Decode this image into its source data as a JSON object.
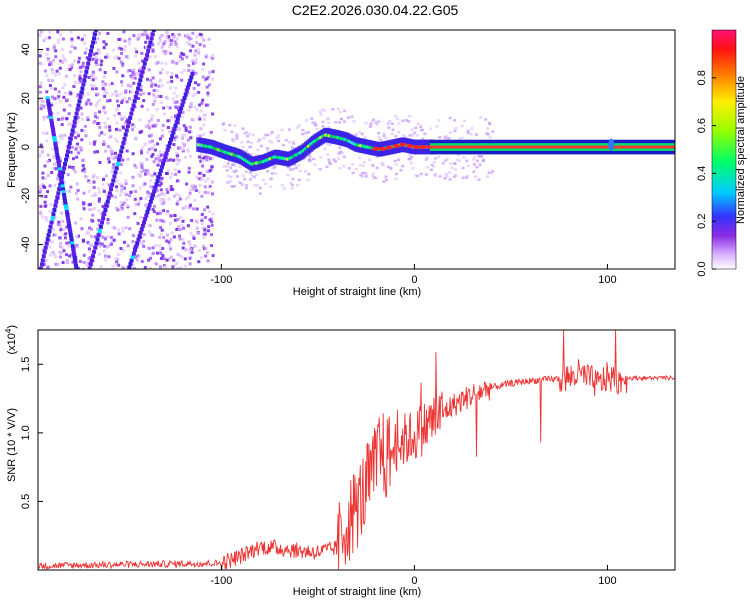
{
  "title": "C2E2.2026.030.04.22.G05",
  "chart_data": [
    {
      "type": "heatmap",
      "xlabel": "Height of straight line (km)",
      "ylabel": "Frequency (Hz)",
      "xlim": [
        -195,
        135
      ],
      "ylim": [
        -50,
        48
      ],
      "xticks": [
        -100,
        0,
        100
      ],
      "yticks": [
        -40,
        -20,
        0,
        20,
        40
      ],
      "colorbar": {
        "label": "Normalized spectral amplitude",
        "range": [
          0,
          1
        ],
        "ticks": [
          "0.0",
          "0.2",
          "0.4",
          "0.6",
          "0.8"
        ],
        "tick_values": [
          0.0,
          0.2,
          0.4,
          0.6,
          0.8
        ]
      },
      "noise_region_x": [
        -195,
        -105
      ],
      "tone": {
        "x": [
          -112,
          -105,
          -98,
          -90,
          -84,
          -78,
          -72,
          -65,
          -58,
          -52,
          -46,
          -40,
          -35,
          -30,
          -24,
          -18,
          -12,
          -6,
          0,
          6,
          12,
          135
        ],
        "freq": [
          1,
          0,
          -2,
          -4,
          -7,
          -6,
          -4,
          -5,
          -2,
          2,
          5,
          4,
          3,
          1,
          0,
          -1,
          0,
          1,
          0,
          0,
          0,
          0
        ]
      },
      "diagonal_streaks": [
        {
          "x": [
            -195,
            -165
          ],
          "freq": [
            -55,
            48
          ]
        },
        {
          "x": [
            -170,
            -135
          ],
          "freq": [
            -55,
            48
          ]
        },
        {
          "x": [
            -150,
            -115
          ],
          "freq": [
            -55,
            30
          ]
        },
        {
          "x": [
            -190,
            -175
          ],
          "freq": [
            20,
            -50
          ]
        }
      ]
    },
    {
      "type": "line",
      "xlabel": "Height of straight line (km)",
      "ylabel": "SNR (10 * V/V)",
      "y_scale_label": "(x10",
      "y_scale_exponent": "4",
      "xlim": [
        -195,
        135
      ],
      "ylim": [
        0,
        17500
      ],
      "xticks": [
        -100,
        0,
        100
      ],
      "yticks": [
        5000,
        10000,
        15000
      ],
      "ytick_labels": [
        "0.5",
        "1.0",
        "1.5"
      ],
      "color": "#ee3333",
      "series": [
        {
          "name": "SNR",
          "x": [
            -195,
            -150,
            -100,
            -90,
            -80,
            -70,
            -60,
            -50,
            -40,
            -35,
            -30,
            -25,
            -20,
            -18,
            -15,
            -10,
            -5,
            0,
            10,
            20,
            30,
            40,
            50,
            60,
            70,
            80,
            85,
            90,
            95,
            100,
            105,
            110,
            120,
            135
          ],
          "values": [
            300,
            400,
            500,
            1000,
            1700,
            1600,
            1400,
            1300,
            1600,
            3500,
            4500,
            6000,
            7500,
            9000,
            8000,
            9000,
            9500,
            9800,
            11000,
            12000,
            12800,
            13300,
            13600,
            13800,
            13900,
            14000,
            14300,
            14000,
            13500,
            14100,
            13800,
            14000,
            14000,
            14000
          ]
        }
      ]
    }
  ]
}
